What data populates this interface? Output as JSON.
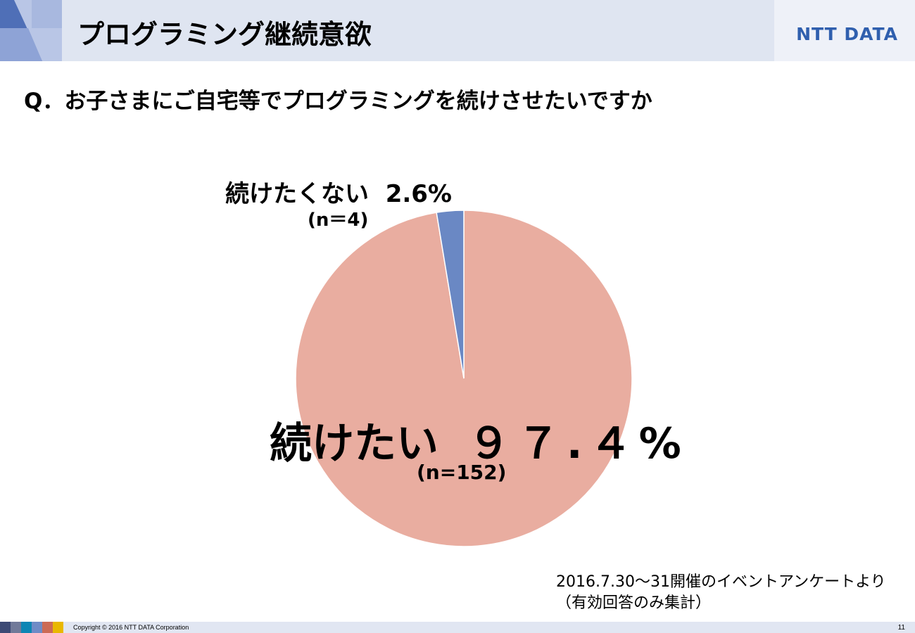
{
  "header": {
    "title": "プログラミング継続意欲",
    "logo": "NTT DATA"
  },
  "question": "Q．お子さまにご自宅等でプログラミングを続けさせたいですか",
  "chart_data": {
    "type": "pie",
    "categories": [
      "続けたい",
      "続けたくない"
    ],
    "values": [
      97.4,
      2.6
    ],
    "counts": [
      152,
      4
    ],
    "colors": [
      "#e9ada0",
      "#6a88c4"
    ],
    "labels": [
      {
        "name": "続けたい",
        "percent": "９７.４%",
        "n": "(n=152)"
      },
      {
        "name": "続けたくない",
        "percent": "2.6%",
        "n": "(n＝4)"
      }
    ]
  },
  "source": {
    "line1": "2016.7.30～31開催のイベントアンケートより",
    "line2": "（有効回答のみ集計）"
  },
  "footer": {
    "copyright": "Copyright © 2016 NTT DATA Corporation",
    "page": "11",
    "colors": [
      "#3d4a75",
      "#717a99",
      "#0e86b4",
      "#6f8bc6",
      "#cc6b55",
      "#e9b800"
    ]
  }
}
